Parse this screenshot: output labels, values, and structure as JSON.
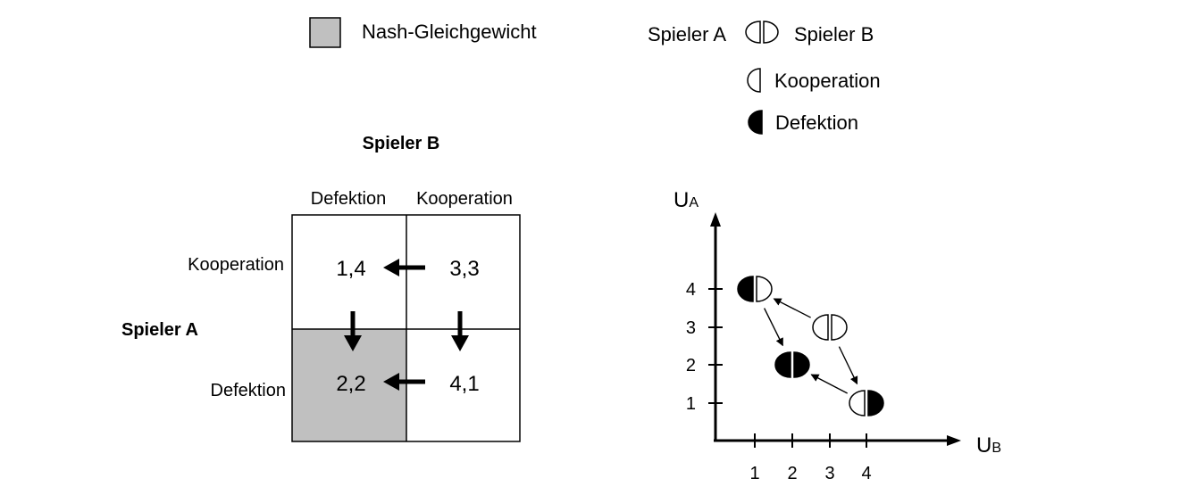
{
  "legend": {
    "nash_label": "Nash-Gleichgewicht",
    "player_a": "Spieler A",
    "player_b": "Spieler B",
    "cooperation": "Kooperation",
    "defection": "Defektion",
    "colors": {
      "nash_fill": "#c0c0c0",
      "line": "#000000",
      "background": "#ffffff"
    }
  },
  "matrix": {
    "column_player": "Spieler B",
    "row_player": "Spieler A",
    "column_headers": [
      "Defektion",
      "Kooperation"
    ],
    "row_headers": [
      "Kooperation",
      "Defektion"
    ],
    "cells": [
      [
        "1,4",
        "3,3"
      ],
      [
        "2,2",
        "4,1"
      ]
    ],
    "nash_cell": "2,2",
    "arrows": [
      {
        "from": "3,3",
        "to": "1,4"
      },
      {
        "from": "1,4",
        "to": "2,2"
      },
      {
        "from": "3,3",
        "to": "4,1"
      },
      {
        "from": "4,1",
        "to": "2,2"
      }
    ]
  },
  "payoff_chart": {
    "y_axis_label": "U",
    "y_axis_subscript": "A",
    "x_axis_label": "U",
    "x_axis_subscript": "B",
    "x_ticks": [
      "1",
      "2",
      "3",
      "4"
    ],
    "y_ticks": [
      "1",
      "2",
      "3",
      "4"
    ],
    "points": [
      {
        "payoff_a": 4,
        "payoff_b": 1,
        "strategy_a": "Defektion",
        "strategy_b": "Kooperation"
      },
      {
        "payoff_a": 3,
        "payoff_b": 3,
        "strategy_a": "Kooperation",
        "strategy_b": "Kooperation"
      },
      {
        "payoff_a": 2,
        "payoff_b": 2,
        "strategy_a": "Defektion",
        "strategy_b": "Defektion"
      },
      {
        "payoff_a": 1,
        "payoff_b": 4,
        "strategy_a": "Kooperation",
        "strategy_b": "Defektion"
      }
    ],
    "arrows": [
      {
        "from": "3,3",
        "to": "4,1"
      },
      {
        "from": "3,3",
        "to": "1,4"
      },
      {
        "from": "4,1",
        "to": "2,2"
      },
      {
        "from": "1,4",
        "to": "2,2"
      }
    ]
  }
}
